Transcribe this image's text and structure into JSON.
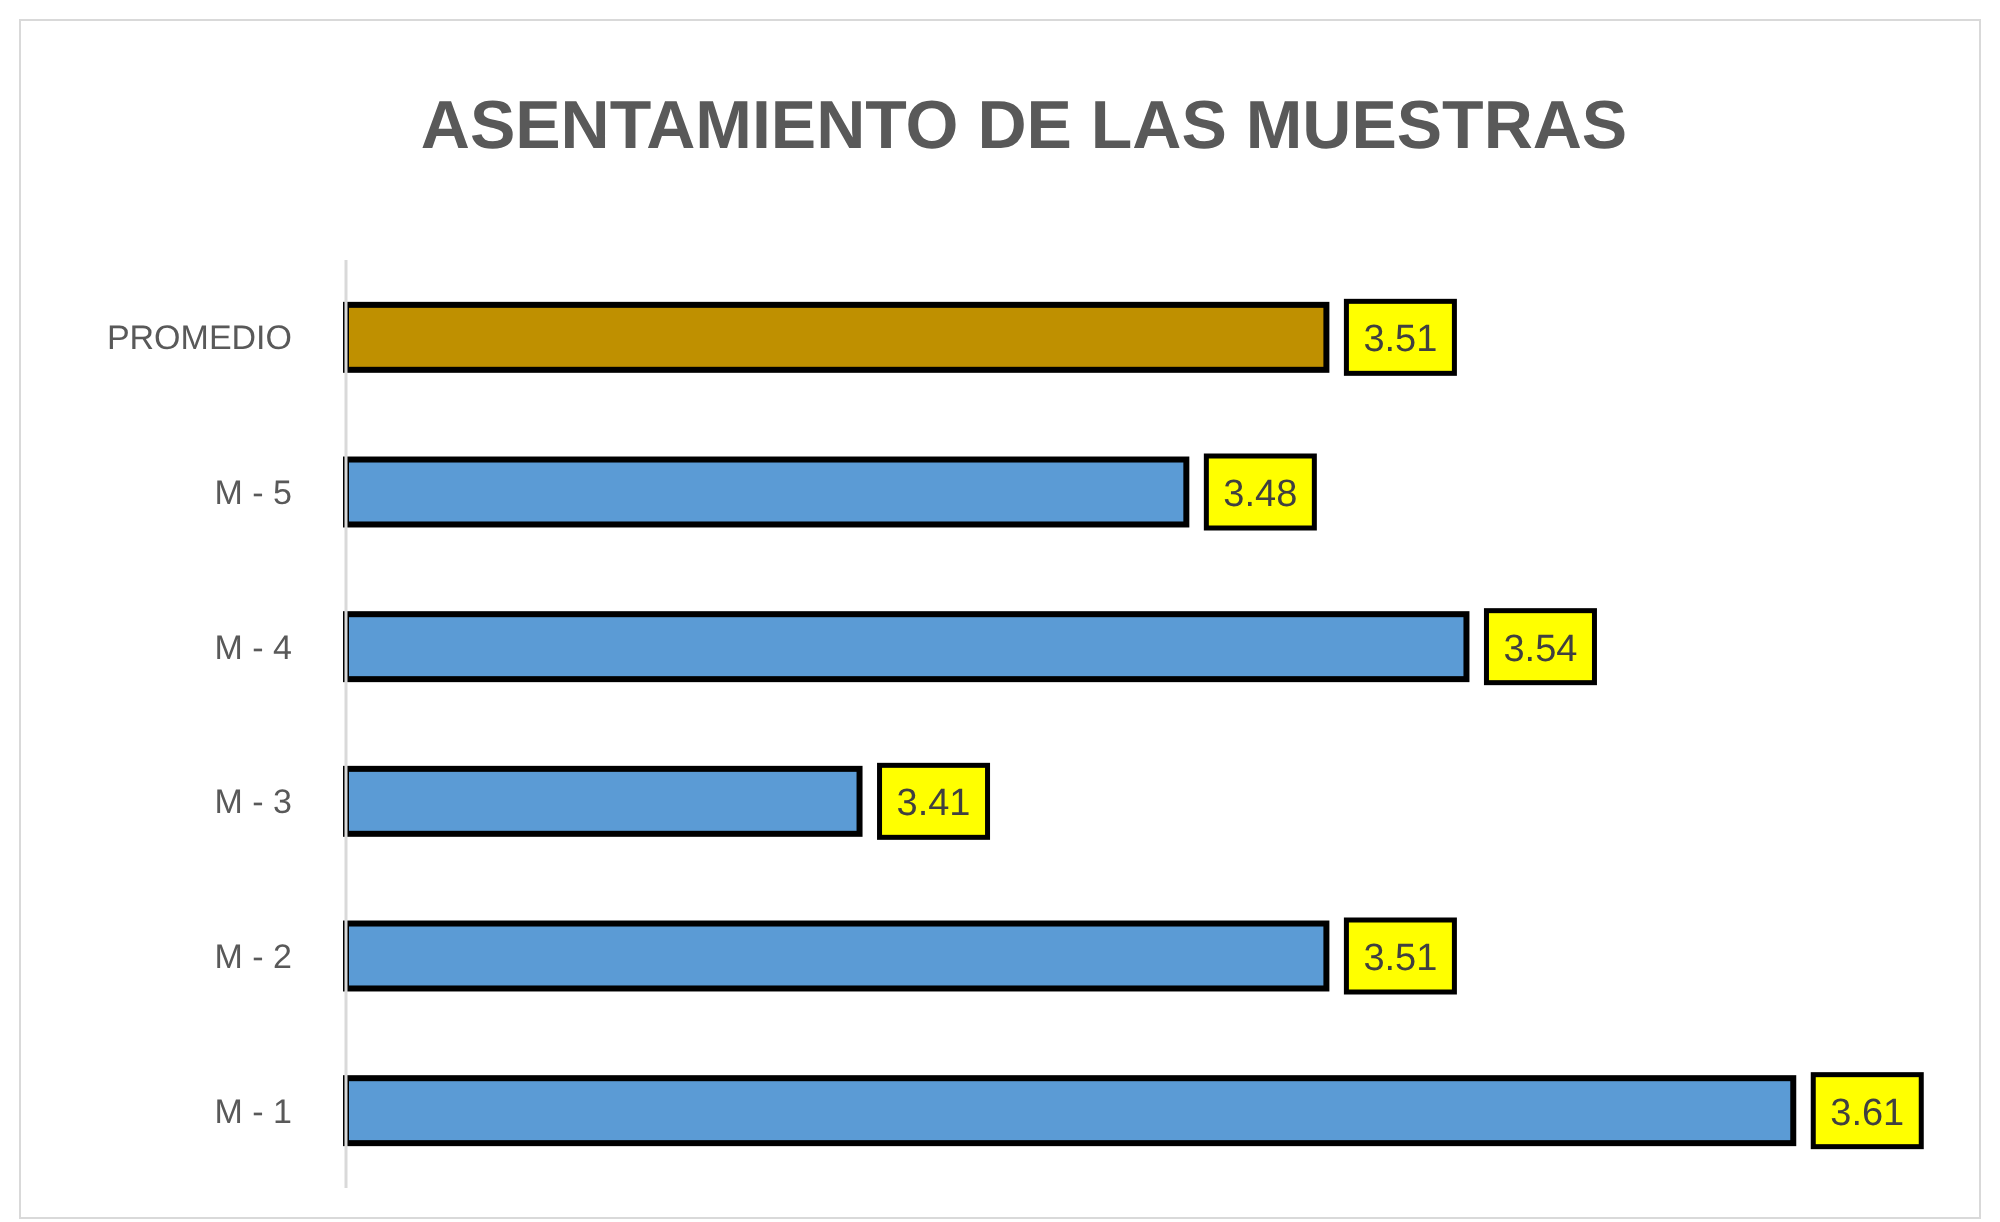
{
  "chart_data": {
    "type": "bar",
    "orientation": "horizontal",
    "title": "ASENTAMIENTO DE LAS MUESTRAS",
    "categories": [
      "PROMEDIO",
      "M - 5",
      "M - 4",
      "M - 3",
      "M - 2",
      "M - 1"
    ],
    "values": [
      3.51,
      3.48,
      3.54,
      3.41,
      3.51,
      3.61
    ],
    "colors": [
      "#bf9000",
      "#5b9bd5",
      "#5b9bd5",
      "#5b9bd5",
      "#5b9bd5",
      "#5b9bd5"
    ],
    "xlim": [
      3.3,
      3.65
    ],
    "data_labels": true
  }
}
